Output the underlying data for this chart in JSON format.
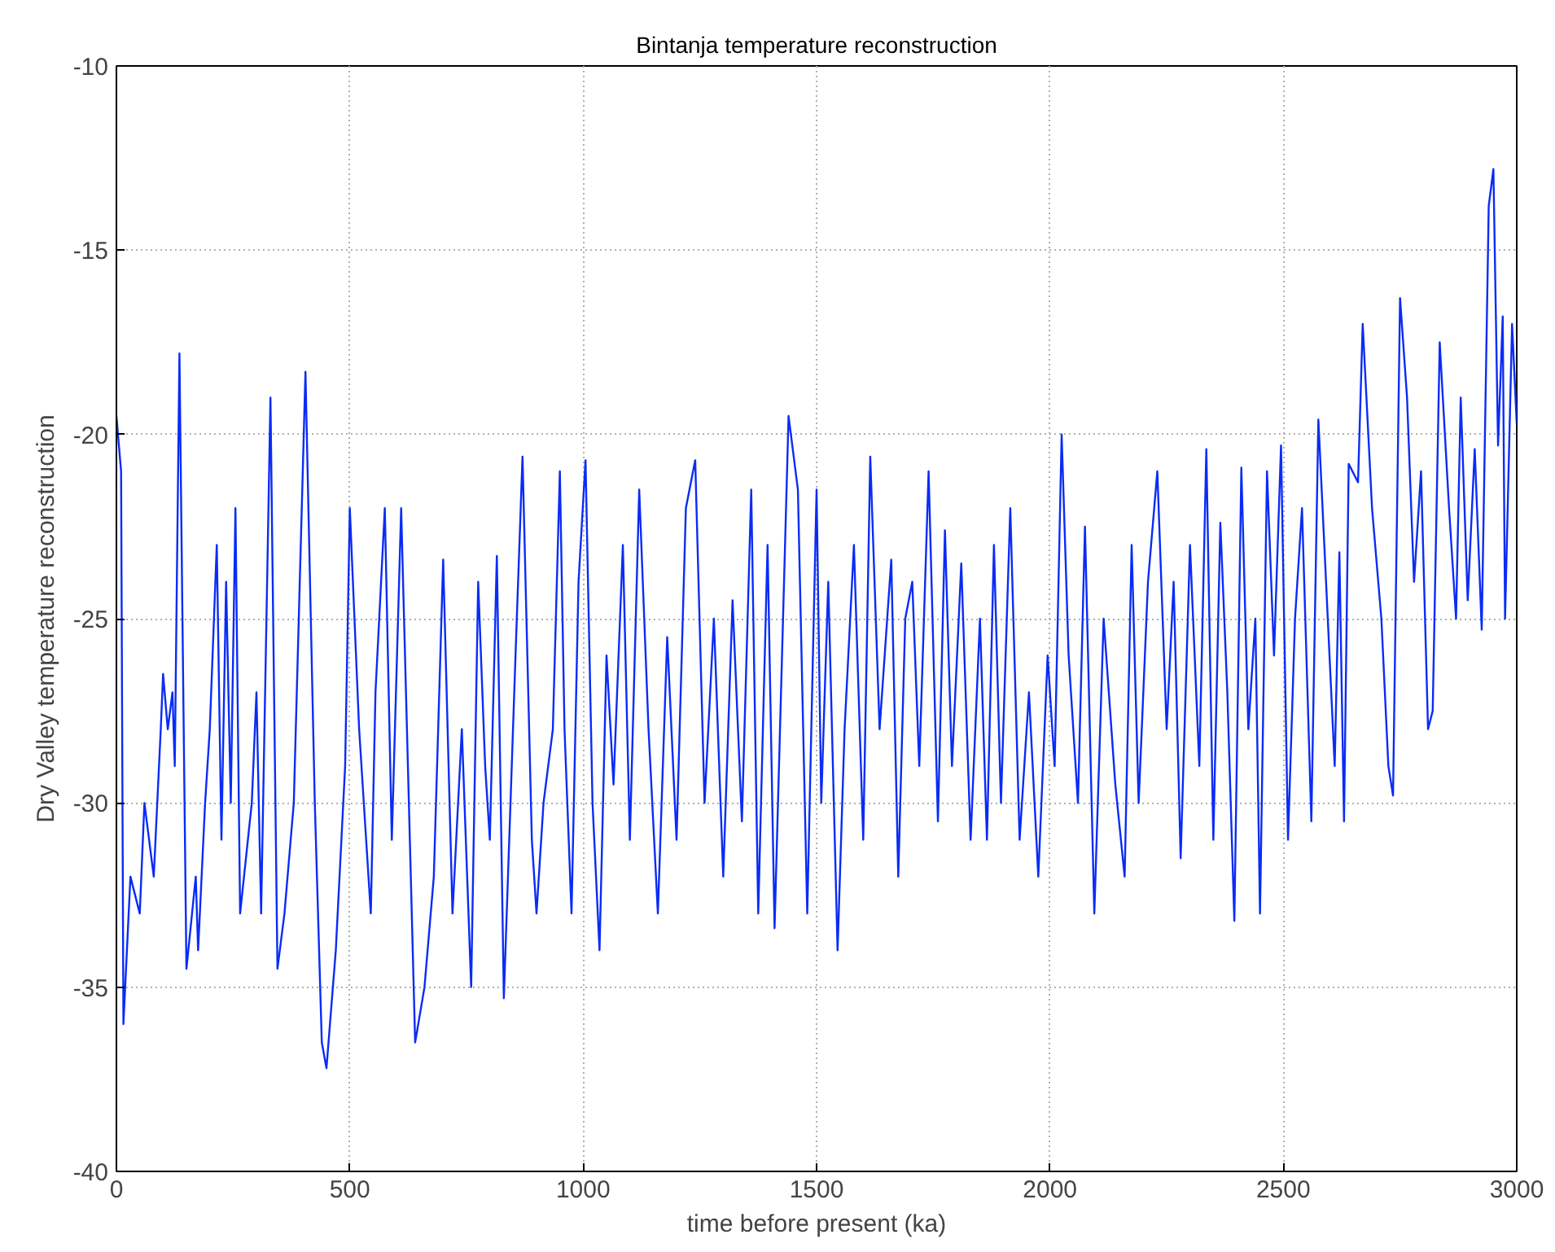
{
  "chart_data": {
    "type": "line",
    "title": "Bintanja temperature reconstruction",
    "xlabel": "time before present (ka)",
    "ylabel": "Dry Valley temperature reconstruction",
    "x": [
      0,
      10,
      15,
      30,
      50,
      60,
      80,
      95,
      100,
      110,
      120,
      125,
      135,
      150,
      170,
      175,
      190,
      200,
      215,
      225,
      235,
      245,
      255,
      265,
      290,
      300,
      310,
      330,
      345,
      360,
      380,
      405,
      425,
      440,
      450,
      470,
      490,
      500,
      520,
      545,
      555,
      575,
      590,
      610,
      640,
      660,
      680,
      700,
      720,
      740,
      760,
      775,
      790,
      800,
      815,
      830,
      855,
      870,
      890,
      900,
      915,
      935,
      950,
      960,
      975,
      990,
      1005,
      1020,
      1035,
      1050,
      1065,
      1085,
      1100,
      1120,
      1140,
      1160,
      1180,
      1200,
      1220,
      1240,
      1260,
      1280,
      1300,
      1320,
      1340,
      1360,
      1375,
      1395,
      1410,
      1440,
      1460,
      1480,
      1500,
      1510,
      1525,
      1545,
      1560,
      1580,
      1600,
      1615,
      1635,
      1660,
      1675,
      1690,
      1705,
      1720,
      1740,
      1760,
      1775,
      1790,
      1810,
      1830,
      1850,
      1865,
      1880,
      1895,
      1915,
      1935,
      1955,
      1975,
      1995,
      2010,
      2025,
      2040,
      2060,
      2075,
      2095,
      2115,
      2140,
      2160,
      2175,
      2190,
      2210,
      2230,
      2250,
      2265,
      2280,
      2300,
      2320,
      2335,
      2350,
      2365,
      2380,
      2395,
      2410,
      2425,
      2440,
      2450,
      2465,
      2480,
      2495,
      2510,
      2525,
      2540,
      2560,
      2575,
      2590,
      2610,
      2620,
      2630,
      2640,
      2660,
      2670,
      2690,
      2710,
      2725,
      2735,
      2750,
      2765,
      2780,
      2795,
      2810,
      2820,
      2835,
      2855,
      2870,
      2880,
      2895,
      2910,
      2925,
      2940,
      2950,
      2960,
      2970,
      2975,
      2990,
      3000
    ],
    "series": [
      {
        "color": "#0a2cf5",
        "values": [
          -19.5,
          -21,
          -36,
          -32,
          -33,
          -30,
          -32,
          -28,
          -26.5,
          -28,
          -27,
          -29,
          -17.8,
          -34.5,
          -32,
          -34,
          -30,
          -28,
          -23,
          -31,
          -24,
          -30,
          -22,
          -33,
          -30,
          -27,
          -33,
          -19,
          -34.5,
          -33,
          -30,
          -18.3,
          -30,
          -36.5,
          -37.2,
          -34,
          -29,
          -22,
          -28,
          -33,
          -27,
          -22,
          -31,
          -22,
          -36.5,
          -35,
          -32,
          -23.4,
          -33,
          -28,
          -35,
          -24,
          -29,
          -31,
          -23.3,
          -35.3,
          -26,
          -20.6,
          -31,
          -33,
          -30,
          -28,
          -21,
          -28,
          -33,
          -24,
          -20.7,
          -30,
          -34,
          -26,
          -29.5,
          -23,
          -31,
          -21.5,
          -28,
          -33,
          -25.5,
          -31,
          -22,
          -20.7,
          -30,
          -25,
          -32,
          -24.5,
          -30.5,
          -21.5,
          -33,
          -23,
          -33.4,
          -19.5,
          -21.5,
          -33,
          -21.5,
          -30,
          -24,
          -34,
          -28,
          -23,
          -31,
          -20.6,
          -28,
          -23.4,
          -32,
          -25,
          -24,
          -29,
          -21,
          -30.5,
          -22.6,
          -29,
          -23.5,
          -31,
          -25,
          -31,
          -23,
          -30,
          -22,
          -31,
          -27,
          -32,
          -26,
          -29,
          -20,
          -26,
          -30,
          -22.5,
          -33,
          -25,
          -29.5,
          -32,
          -23,
          -30,
          -24,
          -21,
          -28,
          -24,
          -31.5,
          -23,
          -29,
          -20.4,
          -31,
          -22.4,
          -27,
          -33.2,
          -20.9,
          -28,
          -25,
          -33,
          -21,
          -26,
          -20.3,
          -31,
          -25,
          -22,
          -30.5,
          -19.6,
          -23.6,
          -29,
          -23.2,
          -30.5,
          -20.8,
          -21.3,
          -17,
          -22,
          -25,
          -29,
          -29.8,
          -16.3,
          -19,
          -24,
          -21,
          -28,
          -27.5,
          -17.5,
          -22,
          -25,
          -19,
          -24.5,
          -20.4,
          -25.3,
          -13.8,
          -12.8,
          -20.3,
          -16.8,
          -25,
          -17,
          -19.7
        ]
      }
    ],
    "xlim": [
      0,
      3000
    ],
    "ylim": [
      -40,
      -10
    ],
    "xticks": [
      0,
      500,
      1000,
      1500,
      2000,
      2500,
      3000
    ],
    "yticks": [
      -40,
      -35,
      -30,
      -25,
      -20,
      -15,
      -10
    ],
    "grid": true,
    "line_style": "solid",
    "marker": "none"
  }
}
